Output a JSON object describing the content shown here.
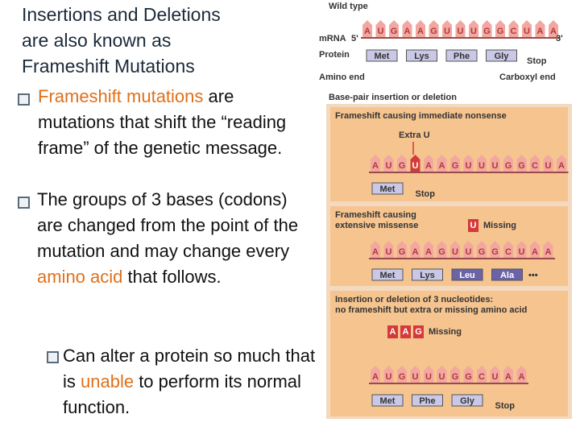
{
  "slide": {
    "title_lines": [
      "Insertions and Deletions",
      "are also known as",
      "Frameshift Mutations"
    ],
    "bullets": [
      {
        "segments": [
          {
            "text": "Frameshift mutations",
            "emphasis": true
          },
          {
            "text": " are mutations that shift the “reading frame” of the genetic message.",
            "emphasis": false
          }
        ]
      },
      {
        "segments": [
          {
            "text": "The groups of 3 bases (codons) are changed from the point of the mutation and may change every ",
            "emphasis": false
          },
          {
            "text": "amino acid",
            "emphasis": true
          },
          {
            "text": " that follows.",
            "emphasis": false
          }
        ]
      }
    ],
    "sub_bullet": {
      "segments": [
        {
          "text": "Can alter a protein so much that is ",
          "emphasis": false
        },
        {
          "text": "unable",
          "emphasis": true
        },
        {
          "text": " to perform its normal function.",
          "emphasis": false
        }
      ]
    },
    "figure": {
      "wild_type": {
        "label": "Wild type",
        "mrna_label": "mRNA",
        "five_prime": "5'",
        "three_prime": "3'",
        "protein_label": "Protein",
        "bases": [
          "A",
          "U",
          "G",
          "A",
          "A",
          "G",
          "U",
          "U",
          "U",
          "G",
          "G",
          "C",
          "U",
          "A",
          "A"
        ],
        "amino_acids": [
          "Met",
          "Lys",
          "Phe",
          "Gly"
        ],
        "stop": "Stop",
        "amino_end": "Amino end",
        "carboxyl_end": "Carboxyl end"
      },
      "section_label": "Base-pair insertion or deletion",
      "panels": [
        {
          "title": [
            "Frameshift causing immediate nonsense"
          ],
          "change_label": "Extra U",
          "change_bases": [],
          "marked_base": 3,
          "bases": [
            "A",
            "U",
            "G",
            "U",
            "A",
            "A",
            "G",
            "U",
            "U",
            "U",
            "G",
            "G",
            "C",
            "U",
            "A"
          ],
          "amino_acids": [
            "Met"
          ],
          "altered_amino_acids": [
            false
          ],
          "stop": "Stop"
        },
        {
          "title": [
            "Frameshift causing",
            "extensive missense"
          ],
          "change_label": "Missing",
          "change_bases": [
            "U"
          ],
          "bases": [
            "A",
            "U",
            "G",
            "A",
            "A",
            "G",
            "U",
            "U",
            "G",
            "G",
            "C",
            "U",
            "A",
            "A"
          ],
          "amino_acids": [
            "Met",
            "Lys",
            "Leu",
            "Ala"
          ],
          "altered_amino_acids": [
            false,
            false,
            true,
            true
          ],
          "continuation": "•••"
        },
        {
          "title": [
            "Insertion or deletion of 3 nucleotides:",
            "no frameshift but extra or missing amino acid"
          ],
          "change_label": "Missing",
          "change_bases": [
            "A",
            "A",
            "G"
          ],
          "bases": [
            "A",
            "U",
            "G",
            "U",
            "U",
            "U",
            "G",
            "G",
            "C",
            "U",
            "A",
            "A"
          ],
          "amino_acids": [
            "Met",
            "Phe",
            "Gly"
          ],
          "altered_amino_acids": [
            false,
            false,
            false
          ],
          "stop": "Stop"
        }
      ]
    }
  }
}
